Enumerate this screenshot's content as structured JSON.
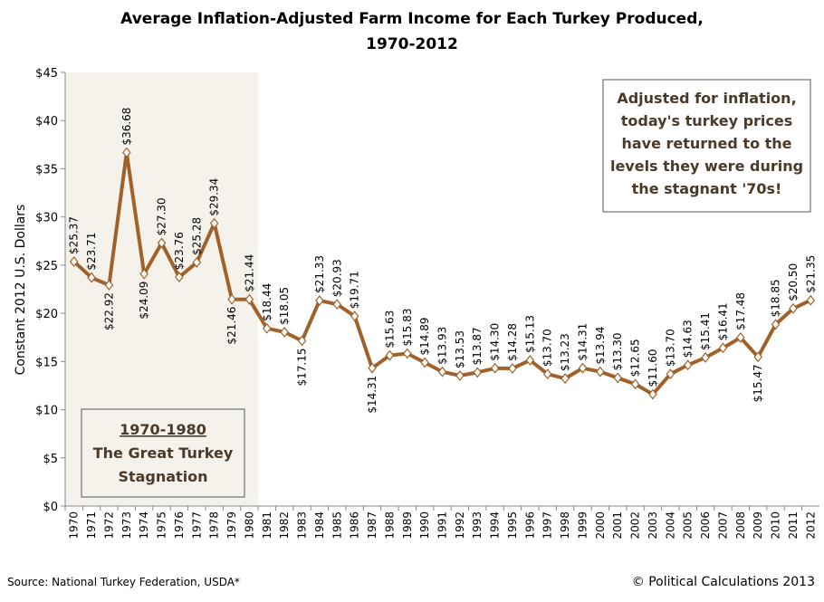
{
  "chart_data": {
    "type": "line",
    "title": [
      "Average Inflation-Adjusted Farm Income for Each Turkey Produced,",
      "1970-2012"
    ],
    "y_label": "Constant 2012 U.S. Dollars",
    "categories": [
      "1970",
      "1971",
      "1972",
      "1973",
      "1974",
      "1975",
      "1976",
      "1977",
      "1978",
      "1979",
      "1980",
      "1981",
      "1982",
      "1983",
      "1984",
      "1985",
      "1986",
      "1987",
      "1988",
      "1989",
      "1990",
      "1991",
      "1992",
      "1993",
      "1994",
      "1995",
      "1996",
      "1997",
      "1998",
      "1999",
      "2000",
      "2001",
      "2002",
      "2003",
      "2004",
      "2005",
      "2006",
      "2007",
      "2008",
      "2009",
      "2010",
      "2011",
      "2012"
    ],
    "values": [
      25.37,
      23.71,
      22.92,
      36.68,
      24.09,
      27.3,
      23.76,
      25.28,
      29.34,
      21.46,
      21.44,
      18.44,
      18.05,
      17.15,
      21.33,
      20.93,
      19.71,
      14.31,
      15.63,
      15.83,
      14.89,
      13.93,
      13.53,
      13.87,
      14.3,
      14.28,
      15.13,
      13.7,
      13.23,
      14.31,
      13.94,
      13.3,
      12.65,
      11.6,
      13.7,
      14.63,
      15.41,
      16.41,
      17.48,
      15.47,
      18.85,
      20.5,
      21.35
    ],
    "value_labels": [
      "$25.37",
      "$23.71",
      "$22.92",
      "$36.68",
      "$24.09",
      "$27.30",
      "$23.76",
      "$25.28",
      "$29.34",
      "$21.46",
      "$21.44",
      "$18.44",
      "$18.05",
      "$17.15",
      "$21.33",
      "$20.93",
      "$19.71",
      "$14.31",
      "$15.63",
      "$15.83",
      "$14.89",
      "$13.93",
      "$13.53",
      "$13.87",
      "$14.30",
      "$14.28",
      "$15.13",
      "$13.70",
      "$13.23",
      "$14.31",
      "$13.94",
      "$13.30",
      "$12.65",
      "$11.60",
      "$13.70",
      "$14.63",
      "$15.41",
      "$16.41",
      "$17.48",
      "$15.47",
      "$18.85",
      "$20.50",
      "$21.35"
    ],
    "value_label_position": [
      "above",
      "above",
      "below",
      "above",
      "below",
      "above",
      "above",
      "above",
      "above",
      "below",
      "above",
      "above",
      "above",
      "below",
      "above",
      "above",
      "above",
      "below",
      "above",
      "above",
      "above",
      "above",
      "above",
      "above",
      "above",
      "above",
      "above",
      "above",
      "above",
      "above",
      "above",
      "above",
      "above",
      "above",
      "above",
      "above",
      "above",
      "above",
      "above",
      "below",
      "above",
      "above",
      "above"
    ],
    "color": "#a0612a",
    "shade": {
      "from": "1970",
      "to": "1980",
      "color": "#f4f2ea"
    },
    "ylim": [
      0,
      45
    ],
    "yticks": [
      {
        "value": 0,
        "label": "$0"
      },
      {
        "value": 5,
        "label": "$5"
      },
      {
        "value": 10,
        "label": "$10"
      },
      {
        "value": 15,
        "label": "$15"
      },
      {
        "value": 20,
        "label": "$20"
      },
      {
        "value": 25,
        "label": "$25"
      },
      {
        "value": 30,
        "label": "$30"
      },
      {
        "value": 35,
        "label": "$35"
      },
      {
        "value": 40,
        "label": "$40"
      },
      {
        "value": 45,
        "label": "$45"
      }
    ],
    "annotations": [
      {
        "lines": [
          "Adjusted for inflation,",
          "today's turkey prices",
          "have returned to the",
          "levels they were during",
          "the stagnant  '70s!"
        ]
      },
      {
        "lines": [
          "1970-1980",
          "The Great Turkey",
          "Stagnation"
        ]
      }
    ],
    "source": "Source: National Turkey Federation, USDA*",
    "credit": "© Political Calculations 2013"
  }
}
